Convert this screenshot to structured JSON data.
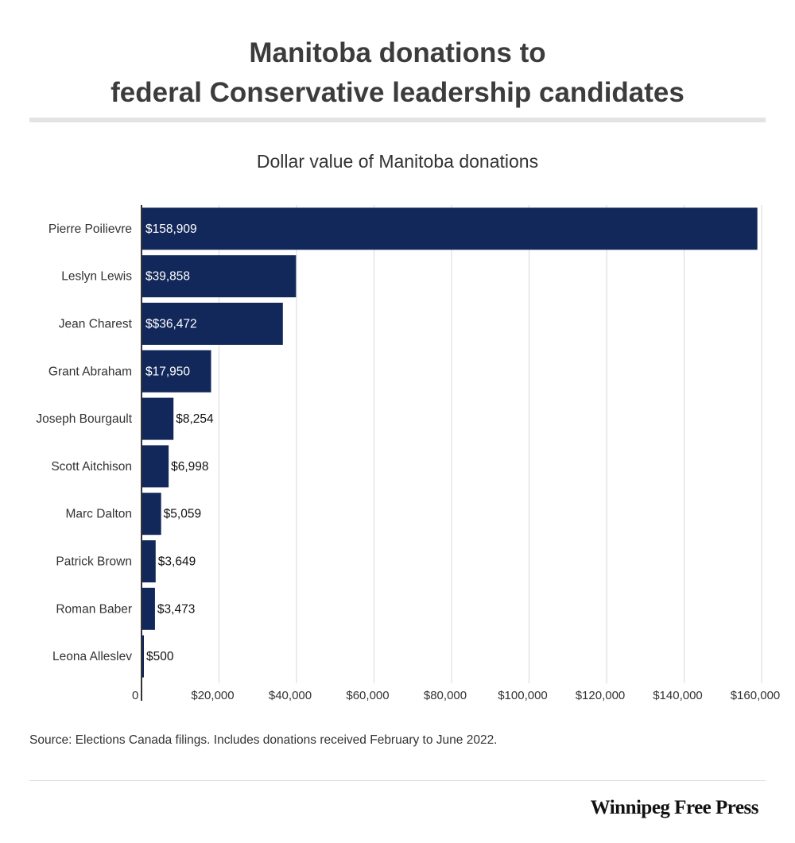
{
  "title_line1": "Manitoba donations to",
  "title_line2": "federal Conservative leadership candidates",
  "source": "Source: Elections Canada filings. Includes donations received February to June 2022.",
  "brand": "Winnipeg Free Press",
  "colors": {
    "bar": "#13285a",
    "grid": "#d9d9d9",
    "axis": "#333333",
    "label_inside": "#ffffff",
    "label_outside": "#111111"
  },
  "chart_data": {
    "type": "bar",
    "orientation": "horizontal",
    "title": "Dollar value of Manitoba donations",
    "categories": [
      "Pierre Poilievre",
      "Leslyn Lewis",
      "Jean Charest",
      "Grant Abraham",
      "Joseph Bourgault",
      "Scott Aitchison",
      "Marc Dalton",
      "Patrick Brown",
      "Roman Baber",
      "Leona Alleslev"
    ],
    "values": [
      158909,
      39858,
      36472,
      17950,
      8254,
      6998,
      5059,
      3649,
      3473,
      500
    ],
    "data_labels": [
      "$158,909",
      "$39,858",
      "$$36,472",
      "$17,950",
      "$8,254",
      "$6,998",
      "$5,059",
      "$3,649",
      "$3,473",
      "$500"
    ],
    "xlim": [
      0,
      160000
    ],
    "x_ticks": [
      0,
      20000,
      40000,
      60000,
      80000,
      100000,
      120000,
      140000,
      160000
    ],
    "x_tick_labels": [
      "0",
      "$20,000",
      "$40,000",
      "$60,000",
      "$80,000",
      "$100,000",
      "$120,000",
      "$140,000",
      "$160,000"
    ],
    "grid": true,
    "xlabel": "",
    "ylabel": ""
  }
}
